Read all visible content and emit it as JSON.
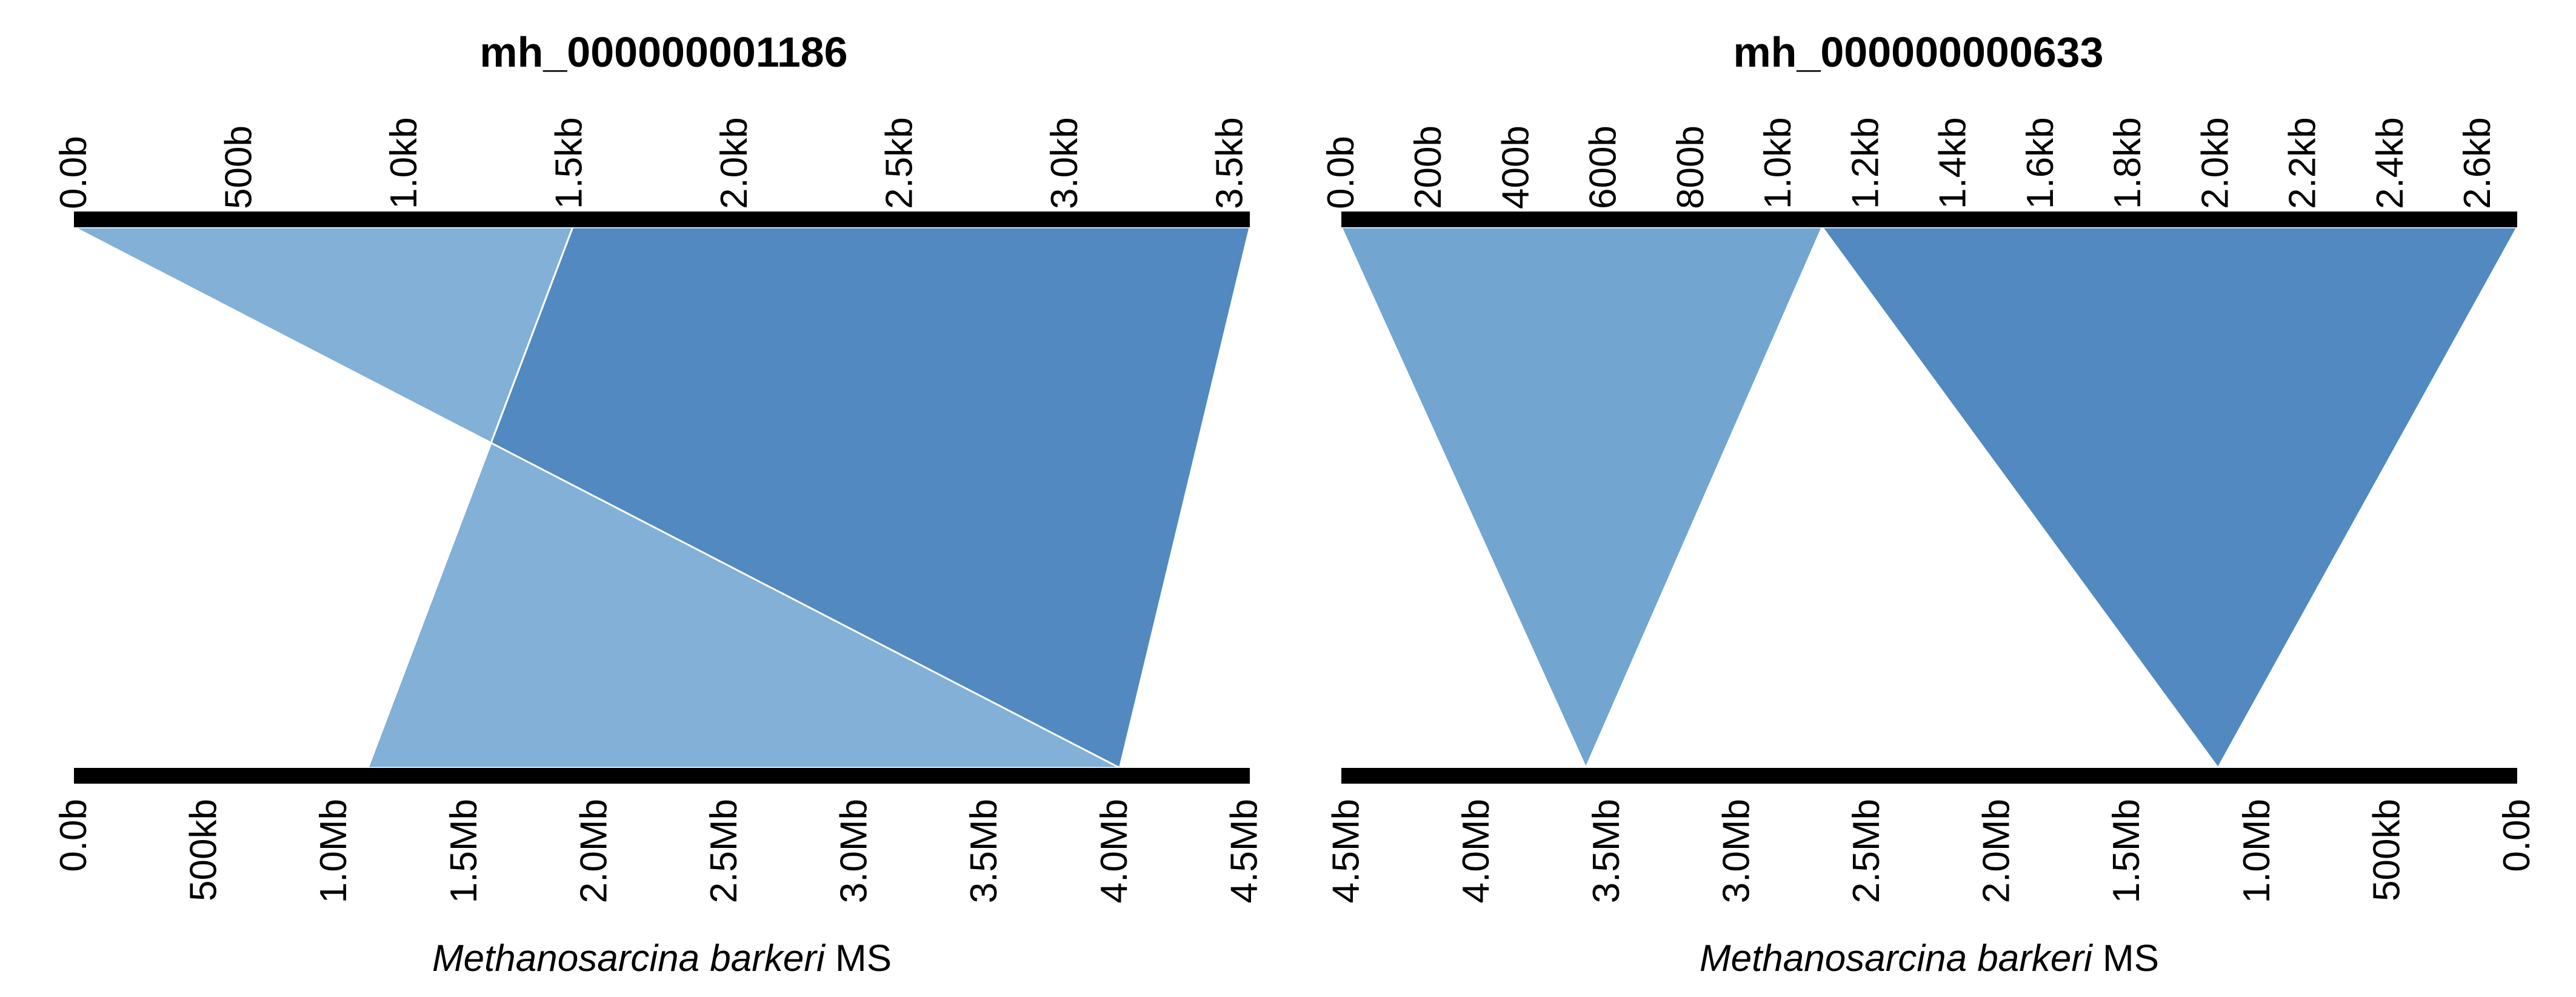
{
  "chart_data": [
    {
      "type": "synteny",
      "title": "mh_000000001186",
      "top_axis": {
        "range": [
          0,
          3560
        ],
        "tick_values": [
          0,
          500,
          1000,
          1500,
          2000,
          2500,
          3000,
          3500
        ],
        "tick_labels": [
          "0.0b",
          "500b",
          "1.0kb",
          "1.5kb",
          "2.0kb",
          "2.5kb",
          "3.0kb",
          "3.5kb"
        ]
      },
      "bottom_axis": {
        "range": [
          0,
          4520000
        ],
        "reversed": false,
        "tick_values": [
          0,
          500000,
          1000000,
          1500000,
          2000000,
          2500000,
          3000000,
          3500000,
          4000000,
          4500000
        ],
        "tick_labels": [
          "0.0b",
          "500kb",
          "1.0Mb",
          "1.5Mb",
          "2.0Mb",
          "2.5Mb",
          "3.0Mb",
          "3.5Mb",
          "4.0Mb",
          "4.5Mb"
        ],
        "organism_italic": "Methanosarcina barkeri",
        "organism_suffix": " MS"
      },
      "alignments": [
        {
          "top": [
            0,
            1510
          ],
          "bottom": [
            4020000,
            1130000
          ],
          "color": "#82b0d6",
          "order": 2
        },
        {
          "top": [
            1510,
            3560
          ],
          "bottom": [
            1130000,
            4020000
          ],
          "color": "#5189c0",
          "order": 1
        }
      ]
    },
    {
      "type": "synteny",
      "title": "mh_000000000633",
      "top_axis": {
        "range": [
          0,
          2690
        ],
        "tick_values": [
          0,
          200,
          400,
          600,
          800,
          1000,
          1200,
          1400,
          1600,
          1800,
          2000,
          2200,
          2400,
          2600
        ],
        "tick_labels": [
          "0.0b",
          "200b",
          "400b",
          "600b",
          "800b",
          "1.0kb",
          "1.2kb",
          "1.4kb",
          "1.6kb",
          "1.8kb",
          "2.0kb",
          "2.2kb",
          "2.4kb",
          "2.6kb"
        ]
      },
      "bottom_axis": {
        "range": [
          0,
          4520000
        ],
        "reversed": true,
        "tick_values": [
          4500000,
          4000000,
          3500000,
          3000000,
          2500000,
          2000000,
          1500000,
          1000000,
          500000,
          0
        ],
        "tick_labels": [
          "4.5Mb",
          "4.0Mb",
          "3.5Mb",
          "3.0Mb",
          "2.5Mb",
          "2.0Mb",
          "1.5Mb",
          "1.0Mb",
          "500kb",
          "0.0b"
        ],
        "organism_italic": "Methanosarcina barkeri",
        "organism_suffix": " MS"
      },
      "alignments": [
        {
          "top": [
            0,
            1100
          ],
          "bottom": [
            3580000,
            3580000
          ],
          "color": "#72a6d0",
          "order": 1
        },
        {
          "top": [
            1100,
            2690
          ],
          "bottom": [
            1150000,
            1150000
          ],
          "color": "#5189c0",
          "order": 2
        }
      ]
    }
  ]
}
